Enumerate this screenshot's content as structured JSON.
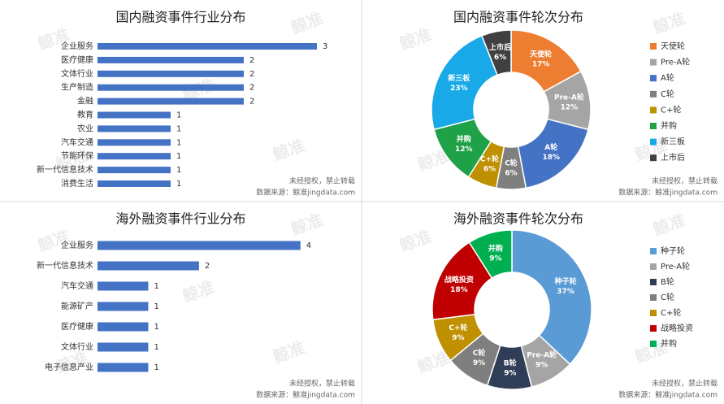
{
  "chart_data": [
    {
      "type": "bar",
      "orientation": "horizontal",
      "title": "国内融资事件行业分布",
      "categories": [
        "企业服务",
        "医疗健康",
        "文体行业",
        "生产制造",
        "金融",
        "教育",
        "农业",
        "汽车交通",
        "节能环保",
        "新一代信息技术",
        "消费生活"
      ],
      "values": [
        3,
        2,
        2,
        2,
        2,
        1,
        1,
        1,
        1,
        1,
        1
      ],
      "color": "#4472c4",
      "xlim": [
        0,
        3.5
      ],
      "notes": [
        "未经授权，禁止转载",
        "数据来源：鲸准jingdata.com"
      ],
      "watermark": "鲸准"
    },
    {
      "type": "pie",
      "donut": true,
      "title": "国内融资事件轮次分布",
      "categories": [
        "天使轮",
        "Pre-A轮",
        "A轮",
        "C轮",
        "C+轮",
        "并购",
        "新三板",
        "上市后"
      ],
      "values": [
        17,
        12,
        18,
        6,
        6,
        12,
        23,
        6
      ],
      "value_labels": [
        "17%",
        "12%",
        "18%",
        "6%",
        "6%",
        "12%",
        "23%",
        "6%"
      ],
      "colors": [
        "#ed7d31",
        "#a5a5a5",
        "#4472c4",
        "#7f7f7f",
        "#bf9000",
        "#1fa148",
        "#19a9e8",
        "#404040"
      ],
      "legend": "right",
      "notes": [
        "未经授权，禁止转载",
        "数据来源：鲸准jingdata.com"
      ],
      "watermark": "鲸准"
    },
    {
      "type": "bar",
      "orientation": "horizontal",
      "title": "海外融资事件行业分布",
      "categories": [
        "企业服务",
        "新一代信息技术",
        "汽车交通",
        "能源矿产",
        "医疗健康",
        "文体行业",
        "电子信息产业"
      ],
      "values": [
        4,
        2,
        1,
        1,
        1,
        1,
        1
      ],
      "color": "#4472c4",
      "xlim": [
        0,
        4.5
      ],
      "notes": [
        "未经授权，禁止转载",
        "数据来源：鲸准jingdata.com"
      ],
      "watermark": "鲸准"
    },
    {
      "type": "pie",
      "donut": true,
      "title": "海外融资事件轮次分布",
      "categories": [
        "种子轮",
        "Pre-A轮",
        "B轮",
        "C轮",
        "C+轮",
        "战略投资",
        "并购"
      ],
      "values": [
        37,
        9,
        9,
        9,
        9,
        18,
        9
      ],
      "value_labels": [
        "37%",
        "9%",
        "9%",
        "9%",
        "9%",
        "18%",
        "9%"
      ],
      "colors": [
        "#5b9bd5",
        "#a5a5a5",
        "#2f3d57",
        "#7f7f7f",
        "#bf9000",
        "#c00000",
        "#00b050"
      ],
      "legend": "right",
      "notes": [
        "未经授权，禁止转载",
        "数据来源：鲸准jingdata.com"
      ],
      "watermark": "鲸准"
    }
  ]
}
